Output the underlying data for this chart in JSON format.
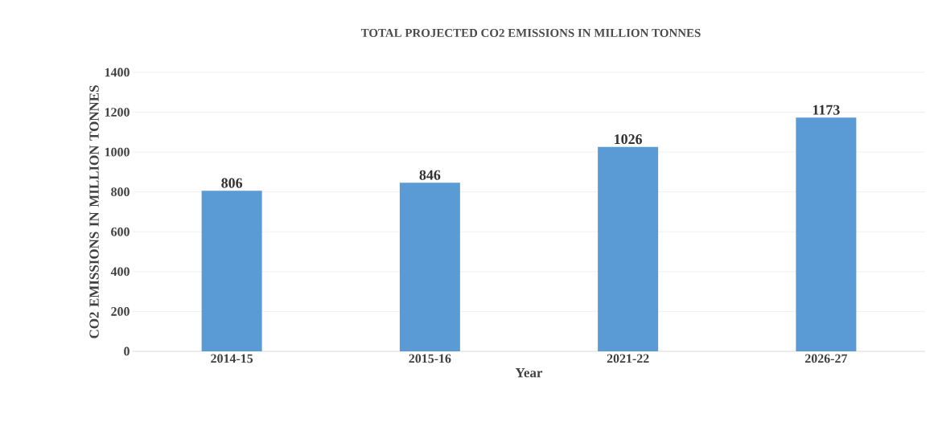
{
  "chart_data": {
    "type": "bar",
    "title": "TOTAL PROJECTED CO2 EMISSIONS IN MILLION TONNES",
    "xlabel": "Year",
    "ylabel": "CO2 EMISSIONS IN MILLION TONNES",
    "categories": [
      "2014-15",
      "2015-16",
      "2021-22",
      "2026-27"
    ],
    "values": [
      806,
      846,
      1026,
      1173
    ],
    "color": "#5b9bd5",
    "ylim": [
      0,
      1400
    ],
    "yticks": [
      0,
      200,
      400,
      600,
      800,
      1000,
      1200,
      1400
    ],
    "grid": "y",
    "data_labels": true
  }
}
